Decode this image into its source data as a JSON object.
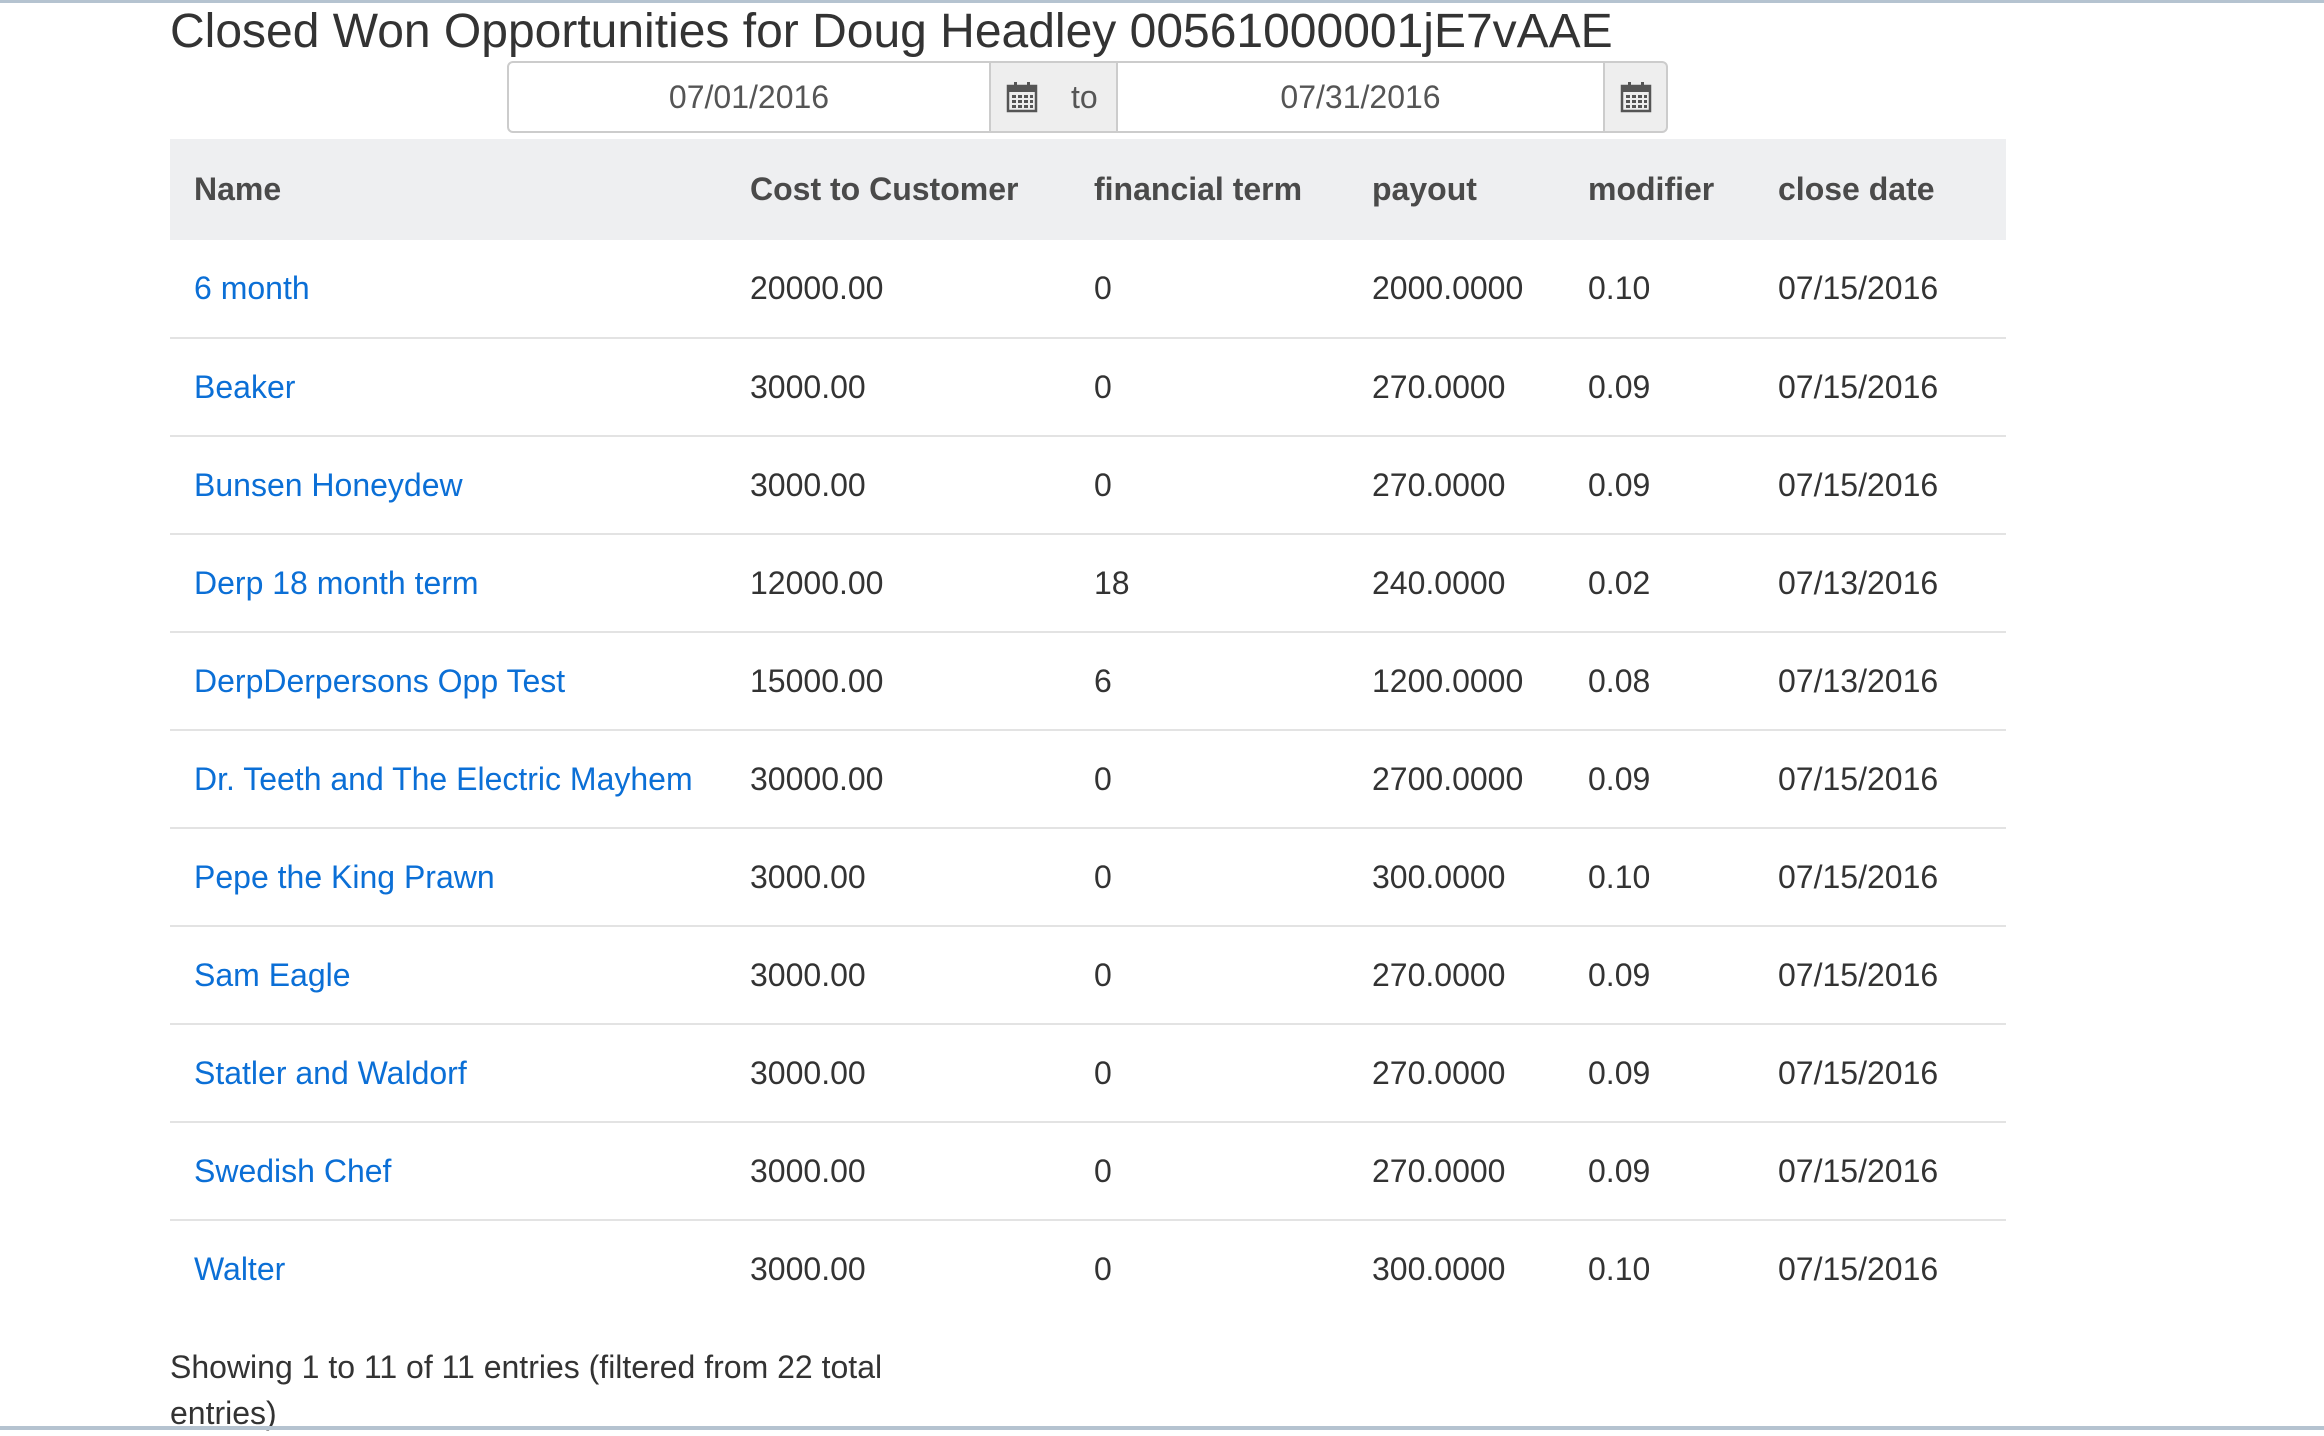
{
  "page": {
    "title": "Closed Won Opportunities for Doug Headley 00561000001jE7vAAE"
  },
  "date_range": {
    "from": "07/01/2016",
    "separator": "to",
    "to": "07/31/2016",
    "from_icon": "calendar-icon",
    "to_icon": "calendar-icon"
  },
  "table": {
    "headers": [
      "Name",
      "Cost to Customer",
      "financial term",
      "payout",
      "modifier",
      "close date"
    ],
    "rows": [
      {
        "name": "6 month",
        "cost": "20000.00",
        "term": "0",
        "payout": "2000.0000",
        "modifier": "0.10",
        "close_date": "07/15/2016"
      },
      {
        "name": "Beaker",
        "cost": "3000.00",
        "term": "0",
        "payout": "270.0000",
        "modifier": "0.09",
        "close_date": "07/15/2016"
      },
      {
        "name": "Bunsen Honeydew",
        "cost": "3000.00",
        "term": "0",
        "payout": "270.0000",
        "modifier": "0.09",
        "close_date": "07/15/2016"
      },
      {
        "name": "Derp 18 month term",
        "cost": "12000.00",
        "term": "18",
        "payout": "240.0000",
        "modifier": "0.02",
        "close_date": "07/13/2016"
      },
      {
        "name": "DerpDerpersons Opp Test",
        "cost": "15000.00",
        "term": "6",
        "payout": "1200.0000",
        "modifier": "0.08",
        "close_date": "07/13/2016"
      },
      {
        "name": "Dr. Teeth and The Electric Mayhem",
        "cost": "30000.00",
        "term": "0",
        "payout": "2700.0000",
        "modifier": "0.09",
        "close_date": "07/15/2016"
      },
      {
        "name": "Pepe the King Prawn",
        "cost": "3000.00",
        "term": "0",
        "payout": "300.0000",
        "modifier": "0.10",
        "close_date": "07/15/2016"
      },
      {
        "name": "Sam Eagle",
        "cost": "3000.00",
        "term": "0",
        "payout": "270.0000",
        "modifier": "0.09",
        "close_date": "07/15/2016"
      },
      {
        "name": "Statler and Waldorf",
        "cost": "3000.00",
        "term": "0",
        "payout": "270.0000",
        "modifier": "0.09",
        "close_date": "07/15/2016"
      },
      {
        "name": "Swedish Chef",
        "cost": "3000.00",
        "term": "0",
        "payout": "270.0000",
        "modifier": "0.09",
        "close_date": "07/15/2016"
      },
      {
        "name": "Walter",
        "cost": "3000.00",
        "term": "0",
        "payout": "300.0000",
        "modifier": "0.10",
        "close_date": "07/15/2016"
      }
    ],
    "info": "Showing 1 to 11 of 11 entries (filtered from 22 total entries)"
  },
  "colors": {
    "link": "#0b6fd6",
    "header_bg": "#eeeff1",
    "text": "#333333"
  }
}
